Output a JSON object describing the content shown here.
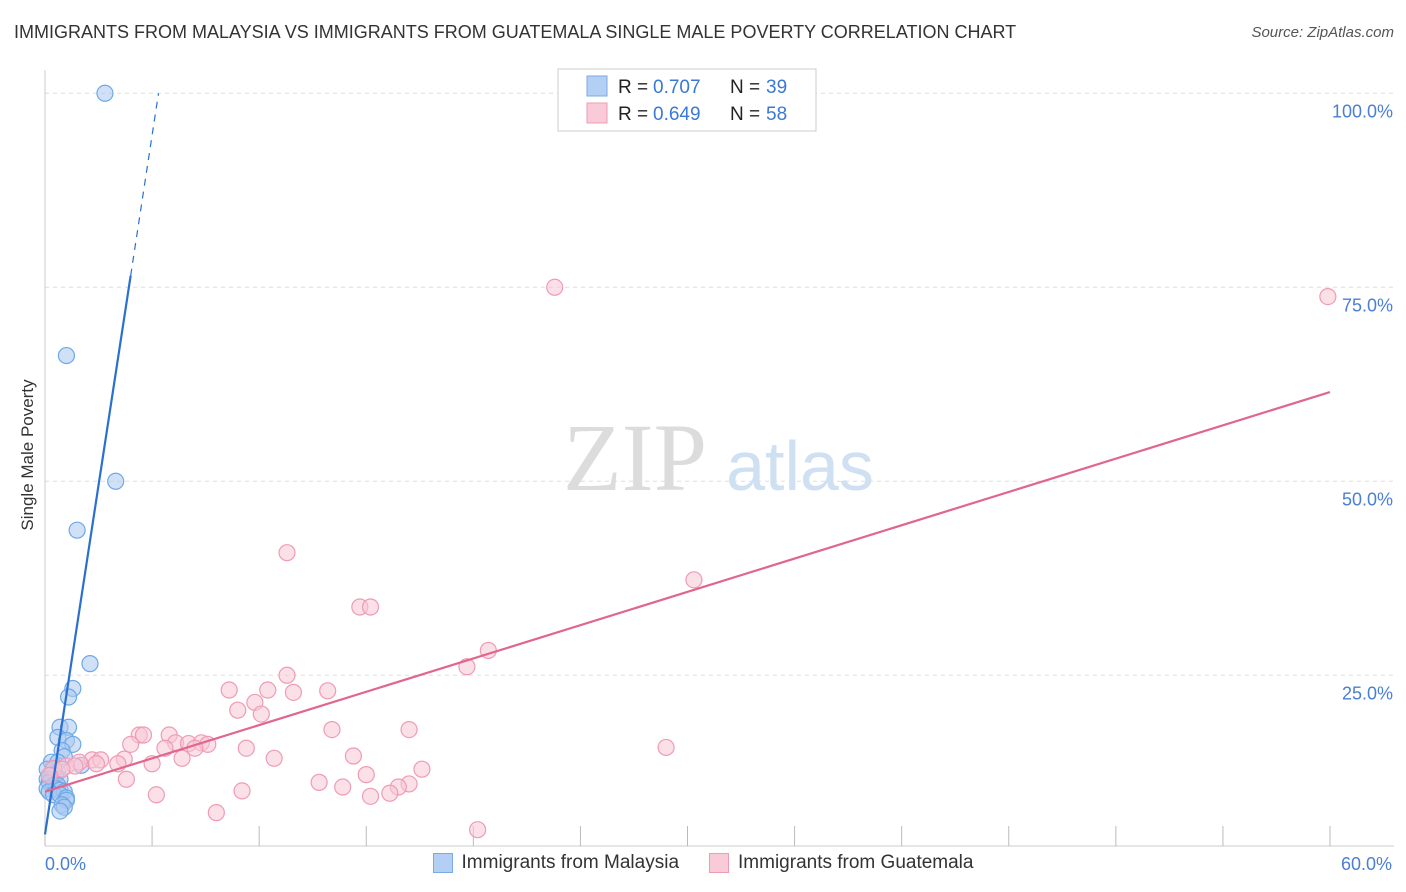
{
  "chart_data": {
    "type": "scatter",
    "title": "IMMIGRANTS FROM MALAYSIA VS IMMIGRANTS FROM GUATEMALA SINGLE MALE POVERTY CORRELATION CHART",
    "source": "Source: ZipAtlas.com",
    "ylabel": "Single Male Poverty",
    "xlabel": "",
    "xlim": [
      0,
      60
    ],
    "ylim": [
      3,
      103
    ],
    "x_tick_labels": [
      "0.0%",
      "60.0%"
    ],
    "y_ticks": [
      25,
      50,
      75,
      100
    ],
    "y_tick_labels": [
      "25.0%",
      "50.0%",
      "75.0%",
      "100.0%"
    ],
    "watermark": {
      "zip": "ZIP",
      "atlas": "atlas"
    },
    "stats_legend": [
      {
        "r_label": "R = ",
        "r_value": "0.707",
        "n_label": "N = ",
        "n_value": "39"
      },
      {
        "r_label": "R = ",
        "r_value": "0.649",
        "n_label": "N = ",
        "n_value": "58"
      }
    ],
    "series": [
      {
        "name": "Immigrants from Malaysia",
        "color": "#6fa8e8",
        "fill": "#a9c9f0",
        "line_color": "#2b6fd1",
        "trend": {
          "x0": 0.0,
          "y0": 4.5,
          "x1": 4.0,
          "y1": 76.5,
          "dash_x1": 5.3,
          "dash_y1": 100.0
        },
        "points": [
          [
            2.8,
            100.0
          ],
          [
            1.0,
            66.2
          ],
          [
            3.3,
            50.0
          ],
          [
            1.5,
            43.7
          ],
          [
            2.1,
            26.5
          ],
          [
            1.3,
            23.3
          ],
          [
            1.1,
            22.2
          ],
          [
            0.7,
            18.3
          ],
          [
            1.1,
            18.3
          ],
          [
            0.6,
            17.0
          ],
          [
            1.0,
            16.6
          ],
          [
            1.3,
            16.1
          ],
          [
            0.8,
            15.3
          ],
          [
            0.9,
            14.5
          ],
          [
            0.3,
            13.8
          ],
          [
            0.6,
            13.8
          ],
          [
            1.7,
            13.4
          ],
          [
            0.1,
            12.9
          ],
          [
            0.4,
            12.9
          ],
          [
            0.6,
            12.5
          ],
          [
            0.3,
            12.1
          ],
          [
            0.5,
            12.1
          ],
          [
            0.1,
            11.6
          ],
          [
            0.7,
            11.6
          ],
          [
            0.2,
            11.2
          ],
          [
            0.4,
            10.8
          ],
          [
            0.6,
            10.8
          ],
          [
            0.1,
            10.4
          ],
          [
            0.5,
            10.4
          ],
          [
            0.7,
            10.2
          ],
          [
            0.2,
            10.0
          ],
          [
            0.9,
            10.0
          ],
          [
            0.4,
            9.6
          ],
          [
            0.7,
            9.6
          ],
          [
            1.0,
            9.2
          ],
          [
            1.0,
            8.9
          ],
          [
            0.8,
            8.3
          ],
          [
            0.9,
            8.0
          ],
          [
            0.7,
            7.5
          ]
        ]
      },
      {
        "name": "Immigrants from Guatemala",
        "color": "#ef9bb5",
        "fill": "#f7c6d5",
        "line_color": "#e0668f",
        "trend": {
          "x0": 0.0,
          "y0": 10.0,
          "x1": 60.0,
          "y1": 61.5
        },
        "points": [
          [
            23.8,
            75.0
          ],
          [
            59.9,
            73.8
          ],
          [
            11.3,
            40.8
          ],
          [
            30.3,
            37.3
          ],
          [
            14.7,
            33.8
          ],
          [
            15.2,
            33.8
          ],
          [
            20.7,
            28.2
          ],
          [
            19.7,
            26.1
          ],
          [
            11.3,
            25.0
          ],
          [
            8.6,
            23.1
          ],
          [
            10.4,
            23.1
          ],
          [
            11.6,
            22.8
          ],
          [
            13.2,
            23.0
          ],
          [
            9.8,
            21.5
          ],
          [
            9.0,
            20.5
          ],
          [
            10.1,
            20.0
          ],
          [
            13.4,
            18.0
          ],
          [
            17.0,
            18.0
          ],
          [
            4.4,
            17.3
          ],
          [
            4.6,
            17.3
          ],
          [
            5.8,
            17.3
          ],
          [
            6.1,
            16.3
          ],
          [
            4.0,
            16.1
          ],
          [
            6.7,
            16.2
          ],
          [
            7.3,
            16.3
          ],
          [
            7.6,
            16.1
          ],
          [
            5.6,
            15.6
          ],
          [
            7.0,
            15.6
          ],
          [
            9.4,
            15.6
          ],
          [
            6.4,
            14.3
          ],
          [
            10.7,
            14.3
          ],
          [
            14.4,
            14.6
          ],
          [
            2.2,
            14.1
          ],
          [
            2.6,
            14.1
          ],
          [
            3.7,
            14.2
          ],
          [
            1.6,
            13.8
          ],
          [
            2.4,
            13.6
          ],
          [
            3.4,
            13.6
          ],
          [
            5.0,
            13.6
          ],
          [
            1.0,
            13.3
          ],
          [
            1.4,
            13.3
          ],
          [
            0.4,
            13.0
          ],
          [
            0.8,
            12.9
          ],
          [
            17.6,
            12.9
          ],
          [
            0.2,
            12.1
          ],
          [
            15.0,
            12.2
          ],
          [
            3.8,
            11.6
          ],
          [
            12.8,
            11.2
          ],
          [
            17.0,
            11.0
          ],
          [
            13.9,
            10.6
          ],
          [
            16.5,
            10.6
          ],
          [
            9.2,
            10.1
          ],
          [
            5.2,
            9.6
          ],
          [
            15.2,
            9.4
          ],
          [
            16.1,
            9.8
          ],
          [
            8.0,
            7.3
          ],
          [
            20.2,
            5.1
          ],
          [
            29.0,
            15.7
          ]
        ]
      }
    ]
  }
}
